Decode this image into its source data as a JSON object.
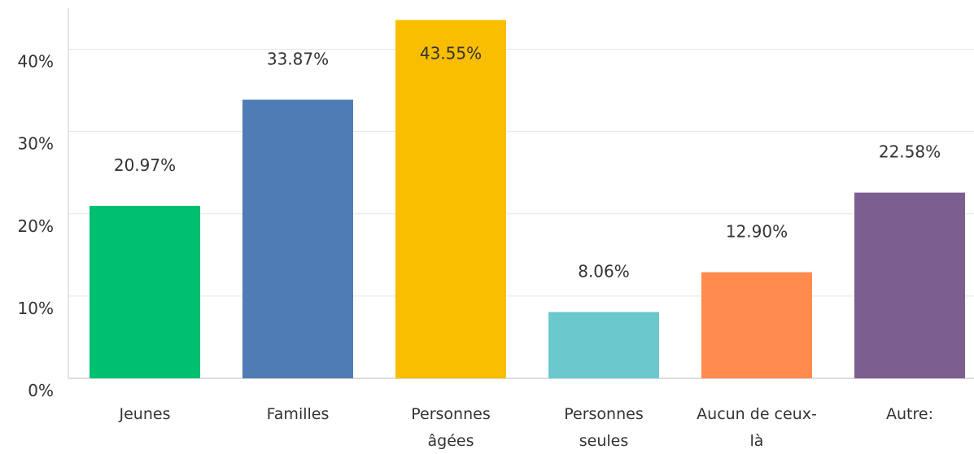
{
  "chart_data": {
    "type": "bar",
    "categories": [
      "Jeunes",
      "Familles",
      "Personnes âgées",
      "Personnes seules",
      "Aucun de ceux-là",
      "Autre:"
    ],
    "values": [
      20.97,
      33.87,
      43.55,
      8.06,
      12.9,
      22.58
    ],
    "value_labels": [
      "20.97%",
      "33.87%",
      "43.55%",
      "8.06%",
      "12.90%",
      "22.58%"
    ],
    "colors": [
      "#00bf6f",
      "#507cb6",
      "#f9be00",
      "#6bc8cd",
      "#ff8b4f",
      "#7d5e90"
    ],
    "ylim": [
      0,
      45
    ],
    "yticks": [
      {
        "value": 0,
        "label": "0%"
      },
      {
        "value": 10,
        "label": "10%"
      },
      {
        "value": 20,
        "label": "20%"
      },
      {
        "value": 30,
        "label": "30%"
      },
      {
        "value": 40,
        "label": "40%"
      }
    ],
    "grid": true
  }
}
